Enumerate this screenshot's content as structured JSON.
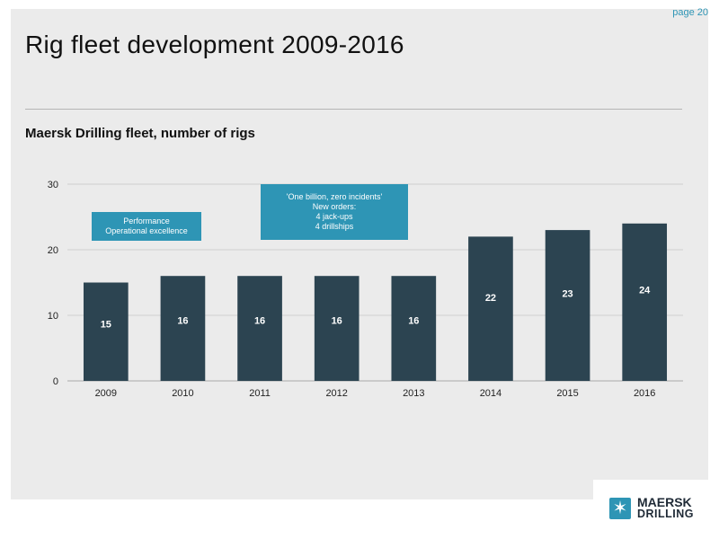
{
  "page": {
    "number_label": "page 20"
  },
  "header": {
    "title": "Rig fleet development 2009-2016"
  },
  "chart_data": {
    "type": "bar",
    "title": "Maersk Drilling fleet, number of rigs",
    "categories": [
      "2009",
      "2010",
      "2011",
      "2012",
      "2013",
      "2014",
      "2015",
      "2016"
    ],
    "values": [
      15,
      16,
      16,
      16,
      16,
      22,
      23,
      24
    ],
    "data_labels": [
      "15",
      "16",
      "16",
      "16",
      "16",
      "22",
      "23",
      "24"
    ],
    "yticks": [
      0,
      10,
      20,
      30
    ],
    "ylim": [
      0,
      30
    ],
    "grid": true,
    "bar_color": "#2c4451",
    "grid_color": "#cfcfcf",
    "annotations": [
      {
        "lines": [
          "Performance",
          "Operational excellence"
        ]
      },
      {
        "lines": [
          "'One billion, zero incidents'",
          "New orders:",
          "4 jack-ups",
          "4 drillships"
        ]
      }
    ]
  },
  "logo": {
    "line1": "MAERSK",
    "line2": "DRILLING",
    "icon": "seven-point-star-icon",
    "color": "#2e95b5"
  }
}
